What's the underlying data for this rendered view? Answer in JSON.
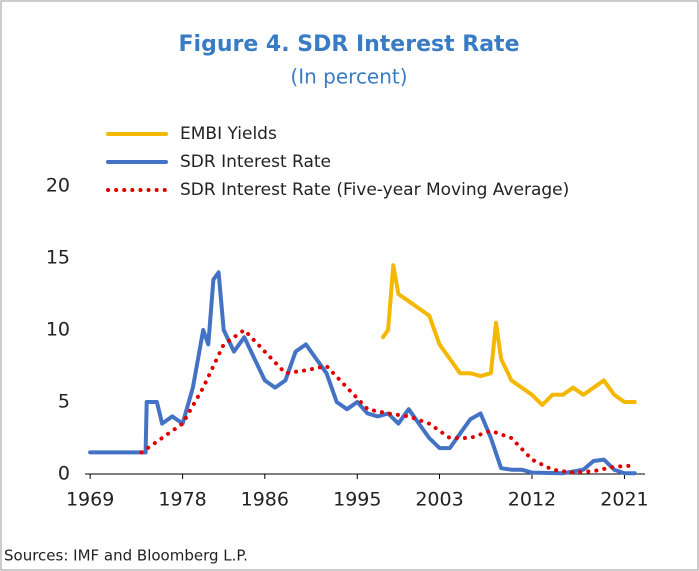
{
  "chart_data": {
    "type": "line",
    "title": "Figure 4. SDR Interest Rate",
    "subtitle": "(In percent)",
    "xlim": [
      1968.5,
      2023
    ],
    "xticks": [
      1969,
      1978,
      1986,
      1995,
      2003,
      2012,
      2021
    ],
    "ylim": [
      0,
      20
    ],
    "yticks": [
      0,
      5,
      10,
      15,
      20
    ],
    "legend": "upper left",
    "series": [
      {
        "name": "EMBI Yields",
        "color": "#f5b800",
        "style": "solid",
        "x": [
          1997.5,
          1998,
          1998.5,
          1999,
          2000,
          2001,
          2002,
          2003,
          2004,
          2005,
          2006,
          2007,
          2008,
          2008.5,
          2009,
          2010,
          2011,
          2012,
          2013,
          2014,
          2015,
          2016,
          2017,
          2018,
          2019,
          2020,
          2021,
          2022
        ],
        "values": [
          9.5,
          10,
          14.5,
          12.5,
          12,
          11.5,
          11,
          9,
          8,
          7,
          7,
          6.8,
          7,
          10.5,
          8,
          6.5,
          6,
          5.5,
          4.8,
          5.5,
          5.5,
          6,
          5.5,
          6,
          6.5,
          5.5,
          5,
          5
        ]
      },
      {
        "name": "SDR Interest Rate",
        "color": "#4472c4",
        "style": "solid",
        "x": [
          1969,
          1974.4,
          1974.5,
          1975.5,
          1976,
          1977,
          1978,
          1979,
          1980,
          1980.5,
          1981,
          1981.5,
          1982,
          1983,
          1984,
          1985,
          1986,
          1987,
          1988,
          1989,
          1990,
          1991,
          1992,
          1993,
          1994,
          1995,
          1996,
          1997,
          1998,
          1999,
          2000,
          2001,
          2002,
          2003,
          2004,
          2005,
          2006,
          2007,
          2008,
          2009,
          2010,
          2011,
          2012,
          2015,
          2017,
          2018,
          2019,
          2020,
          2021,
          2022
        ],
        "values": [
          1.5,
          1.5,
          5,
          5,
          3.5,
          4,
          3.5,
          6,
          10,
          9,
          13.5,
          14,
          10,
          8.5,
          9.5,
          8,
          6.5,
          6,
          6.5,
          8.5,
          9,
          8,
          7,
          5,
          4.5,
          5,
          4.2,
          4,
          4.2,
          3.5,
          4.5,
          3.5,
          2.5,
          1.8,
          1.8,
          2.8,
          3.8,
          4.2,
          2.5,
          0.4,
          0.3,
          0.3,
          0.1,
          0.05,
          0.3,
          0.9,
          1,
          0.3,
          0.05,
          0.05
        ]
      },
      {
        "name": "SDR Interest Rate (Five-year Moving Average)",
        "color": "#e00000",
        "style": "dotted",
        "x": [
          1974,
          1976,
          1978,
          1980,
          1982,
          1984,
          1986,
          1988,
          1990,
          1992,
          1994,
          1996,
          1998,
          2000,
          2002,
          2004,
          2006,
          2008,
          2010,
          2012,
          2014,
          2016,
          2018,
          2020,
          2022
        ],
        "values": [
          1.5,
          2.5,
          3.5,
          6,
          9,
          10,
          8.5,
          7,
          7.2,
          7.5,
          6,
          4.5,
          4.2,
          4,
          3.5,
          2.5,
          2.5,
          3,
          2.5,
          1,
          0.3,
          0.1,
          0.2,
          0.5,
          0.6
        ]
      }
    ]
  },
  "source": "Sources: IMF and Bloomberg L.P."
}
